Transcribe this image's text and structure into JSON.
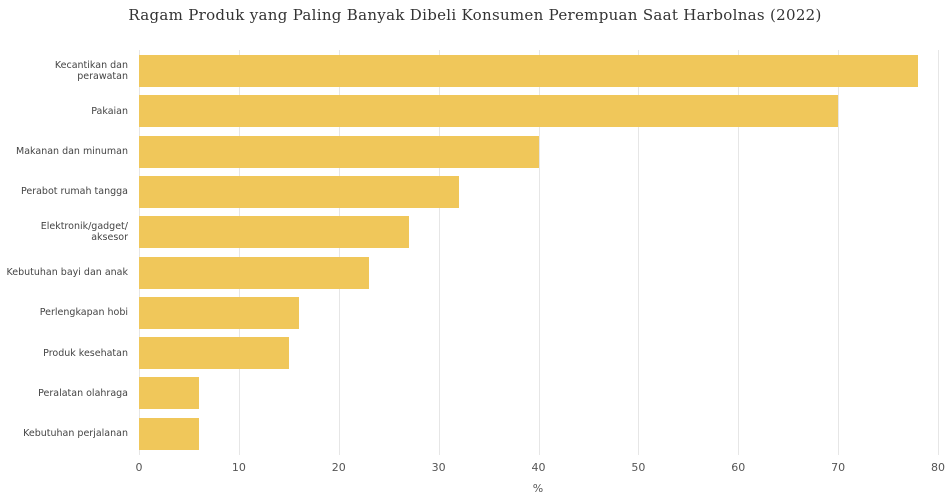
{
  "chart_data": {
    "type": "bar",
    "orientation": "horizontal",
    "title": "Ragam Produk yang Paling Banyak Dibeli Konsumen Perempuan Saat Harbolnas (2022)",
    "categories": [
      "Kecantikan dan perawatan",
      "Pakaian",
      "Makanan dan minuman",
      "Perabot rumah tangga",
      "Elektronik/gadget/ aksesor",
      "Kebutuhan bayi dan anak",
      "Perlengkapan hobi",
      "Produk kesehatan",
      "Peralatan olahraga",
      "Kebutuhan perjalanan"
    ],
    "values": [
      78,
      70,
      40,
      32,
      27,
      23,
      16,
      15,
      6,
      6
    ],
    "color": "#f0c75a",
    "xlabel": "%",
    "xlim": [
      0,
      80
    ],
    "xticks": [
      0,
      10,
      20,
      30,
      40,
      50,
      60,
      70,
      80
    ],
    "grid": true
  }
}
